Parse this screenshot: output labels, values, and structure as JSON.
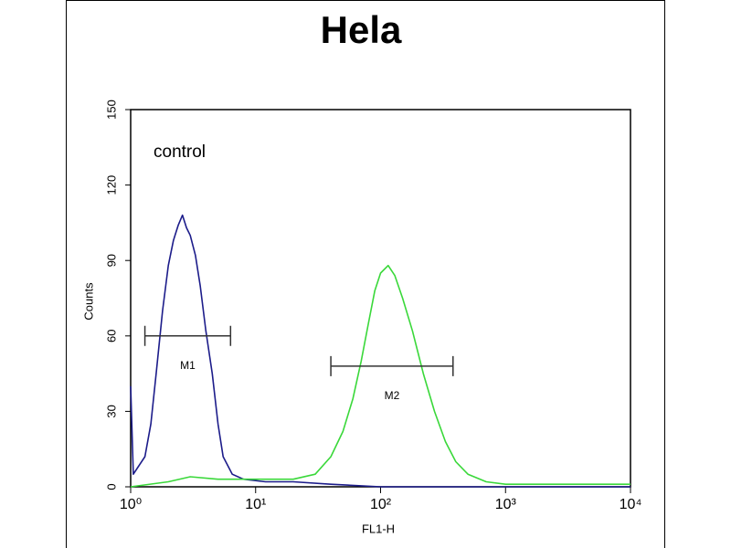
{
  "chart_data": {
    "type": "histogram-line",
    "title": "Hela",
    "x_label": "FL1-H",
    "y_label": "Counts",
    "annotation": "control",
    "xscale": "log",
    "xlim": [
      1,
      10000
    ],
    "ylim": [
      0,
      150
    ],
    "xticks": [
      {
        "value": 1,
        "label": "10⁰"
      },
      {
        "value": 10,
        "label": "10¹"
      },
      {
        "value": 100,
        "label": "10²"
      },
      {
        "value": 1000,
        "label": "10³"
      },
      {
        "value": 10000,
        "label": "10⁴"
      }
    ],
    "yticks": [
      0,
      30,
      60,
      90,
      120,
      150
    ],
    "series": [
      {
        "color": "#1c1c8a",
        "x": [
          1.0,
          1.05,
          1.15,
          1.3,
          1.45,
          1.6,
          1.8,
          2.0,
          2.2,
          2.4,
          2.6,
          2.8,
          3.0,
          3.3,
          3.6,
          4.0,
          4.5,
          5.0,
          5.5,
          6.5,
          8,
          12,
          20,
          40,
          100,
          1000,
          10000
        ],
        "values": [
          40,
          5,
          8,
          12,
          25,
          45,
          70,
          88,
          98,
          104,
          108,
          103,
          100,
          92,
          80,
          62,
          45,
          25,
          12,
          5,
          3,
          2,
          2,
          1,
          0,
          0,
          0
        ]
      },
      {
        "color": "#3ad83a",
        "x": [
          1,
          2,
          3,
          5,
          10,
          20,
          30,
          40,
          50,
          60,
          70,
          80,
          90,
          100,
          115,
          130,
          150,
          180,
          220,
          270,
          330,
          400,
          500,
          700,
          1000,
          3000,
          10000
        ],
        "values": [
          0,
          2,
          4,
          3,
          3,
          3,
          5,
          12,
          22,
          35,
          50,
          65,
          78,
          85,
          88,
          84,
          75,
          62,
          45,
          30,
          18,
          10,
          5,
          2,
          1,
          1,
          1
        ]
      }
    ],
    "gates": [
      {
        "label": "M1",
        "range": [
          1.3,
          6.3
        ],
        "y": 60
      },
      {
        "label": "M2",
        "range": [
          40,
          380
        ],
        "y": 48
      }
    ]
  }
}
